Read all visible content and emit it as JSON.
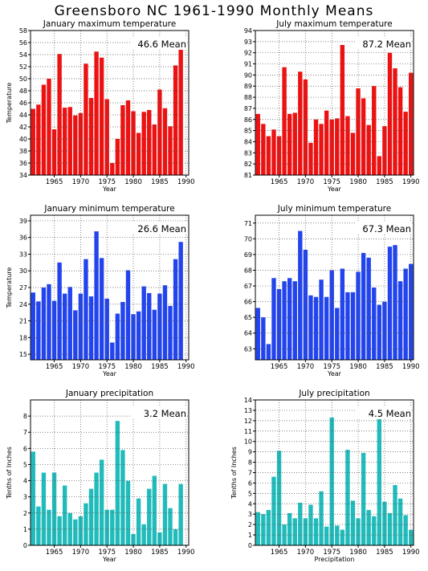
{
  "page": {
    "title": "Greensboro NC  1961-1990 Monthly Means"
  },
  "chart_data": [
    {
      "type": "bar",
      "title": "January maximum temperature",
      "xlabel": "Year",
      "ylabel": "Temperature",
      "mean_label": "46.6 Mean",
      "color": "#ee1111",
      "x": [
        1961,
        1962,
        1963,
        1964,
        1965,
        1966,
        1967,
        1968,
        1969,
        1970,
        1971,
        1972,
        1973,
        1974,
        1975,
        1976,
        1977,
        1978,
        1979,
        1980,
        1981,
        1982,
        1983,
        1984,
        1985,
        1986,
        1987,
        1988,
        1989,
        1990
      ],
      "values": [
        45.0,
        45.7,
        49.0,
        50.0,
        41.6,
        54.1,
        45.2,
        45.3,
        43.9,
        44.3,
        52.5,
        46.8,
        54.5,
        53.5,
        46.6,
        36.0,
        40.0,
        45.6,
        46.4,
        44.6,
        41.0,
        44.5,
        44.8,
        42.4,
        48.2,
        45.1,
        42.1,
        52.2,
        55.9,
        null
      ],
      "xlim": [
        1960.5,
        1990.5
      ],
      "ylim": [
        34,
        58
      ],
      "yticks": [
        34,
        36,
        38,
        40,
        42,
        44,
        46,
        48,
        50,
        52,
        54,
        56,
        58
      ],
      "xticks": [
        1965,
        1970,
        1975,
        1980,
        1985,
        1990
      ],
      "grid": true
    },
    {
      "type": "bar",
      "title": "July maximum temperature",
      "xlabel": "Year",
      "ylabel": "",
      "mean_label": "87.2 Mean",
      "color": "#ee1111",
      "x": [
        1961,
        1962,
        1963,
        1964,
        1965,
        1966,
        1967,
        1968,
        1969,
        1970,
        1971,
        1972,
        1973,
        1974,
        1975,
        1976,
        1977,
        1978,
        1979,
        1980,
        1981,
        1982,
        1983,
        1984,
        1985,
        1986,
        1987,
        1988,
        1989,
        1990
      ],
      "values": [
        86.5,
        85.6,
        84.5,
        85.1,
        84.5,
        90.7,
        86.5,
        86.6,
        90.3,
        89.6,
        83.9,
        86.0,
        85.6,
        86.8,
        86.0,
        86.1,
        92.7,
        86.3,
        84.8,
        88.8,
        87.9,
        85.5,
        89.0,
        82.7,
        85.4,
        92.0,
        90.6,
        88.9,
        86.7,
        90.2
      ],
      "xlim": [
        1960.5,
        1990.5
      ],
      "ylim": [
        81,
        94
      ],
      "yticks": [
        81,
        82,
        83,
        84,
        85,
        86,
        87,
        88,
        89,
        90,
        91,
        92,
        93,
        94
      ],
      "xticks": [
        1965,
        1970,
        1975,
        1980,
        1985,
        1990
      ],
      "grid": true
    },
    {
      "type": "bar",
      "title": "January minimum temperature",
      "xlabel": "Year",
      "ylabel": "Temperature",
      "mean_label": "26.6 Mean",
      "color": "#2244ee",
      "x": [
        1961,
        1962,
        1963,
        1964,
        1965,
        1966,
        1967,
        1968,
        1969,
        1970,
        1971,
        1972,
        1973,
        1974,
        1975,
        1976,
        1977,
        1978,
        1979,
        1980,
        1981,
        1982,
        1983,
        1984,
        1985,
        1986,
        1987,
        1988,
        1989,
        1990
      ],
      "values": [
        26.1,
        24.5,
        27.0,
        27.6,
        24.6,
        31.5,
        25.9,
        27.1,
        22.9,
        25.9,
        32.1,
        25.4,
        37.1,
        32.3,
        25.0,
        17.1,
        22.3,
        24.4,
        30.1,
        22.2,
        22.7,
        27.2,
        26.0,
        23.0,
        25.9,
        27.4,
        23.7,
        32.1,
        35.2,
        null
      ],
      "xlim": [
        1960.5,
        1990.5
      ],
      "ylim": [
        14,
        40
      ],
      "yticks": [
        15,
        18,
        21,
        24,
        27,
        30,
        33,
        36,
        39
      ],
      "xticks": [
        1965,
        1970,
        1975,
        1980,
        1985,
        1990
      ],
      "grid": true
    },
    {
      "type": "bar",
      "title": "July minimum temperature",
      "xlabel": "Year",
      "ylabel": "",
      "mean_label": "67.3 Mean",
      "color": "#2244ee",
      "x": [
        1961,
        1962,
        1963,
        1964,
        1965,
        1966,
        1967,
        1968,
        1969,
        1970,
        1971,
        1972,
        1973,
        1974,
        1975,
        1976,
        1977,
        1978,
        1979,
        1980,
        1981,
        1982,
        1983,
        1984,
        1985,
        1986,
        1987,
        1988,
        1989,
        1990
      ],
      "values": [
        65.6,
        65.0,
        63.3,
        67.5,
        66.8,
        67.3,
        67.5,
        67.3,
        70.5,
        69.3,
        66.4,
        66.3,
        67.4,
        66.3,
        68.0,
        65.6,
        68.1,
        66.6,
        66.6,
        67.9,
        69.1,
        68.8,
        66.9,
        65.8,
        66.0,
        69.5,
        69.6,
        67.3,
        68.1,
        68.4
      ],
      "xlim": [
        1960.5,
        1990.5
      ],
      "ylim": [
        62.3,
        71.5
      ],
      "yticks": [
        63,
        64,
        65,
        66,
        67,
        68,
        69,
        70,
        71
      ],
      "xticks": [
        1965,
        1970,
        1975,
        1980,
        1985,
        1990
      ],
      "grid": true
    },
    {
      "type": "bar",
      "title": "January precipitation",
      "xlabel": "Year",
      "ylabel": "Tenths of Inches",
      "mean_label": "3.2 Mean",
      "color": "#22bbbb",
      "x": [
        1961,
        1962,
        1963,
        1964,
        1965,
        1966,
        1967,
        1968,
        1969,
        1970,
        1971,
        1972,
        1973,
        1974,
        1975,
        1976,
        1977,
        1978,
        1979,
        1980,
        1981,
        1982,
        1983,
        1984,
        1985,
        1986,
        1987,
        1988,
        1989,
        1990
      ],
      "values": [
        5.8,
        2.4,
        4.5,
        2.2,
        4.5,
        1.8,
        3.7,
        2.0,
        1.6,
        1.8,
        2.6,
        3.5,
        4.5,
        5.3,
        2.2,
        2.2,
        7.7,
        5.9,
        4.0,
        0.7,
        2.9,
        1.3,
        3.5,
        4.3,
        0.8,
        3.8,
        2.3,
        1.0,
        3.8,
        null
      ],
      "xlim": [
        1960.5,
        1990.5
      ],
      "ylim": [
        0,
        9
      ],
      "yticks": [
        0,
        1,
        2,
        3,
        4,
        5,
        6,
        7,
        8
      ],
      "xticks": [
        1965,
        1970,
        1975,
        1980,
        1985,
        1990
      ],
      "grid": true
    },
    {
      "type": "bar",
      "title": "July precipitation",
      "xlabel": "Precipitation",
      "ylabel": "Tenths of Inches",
      "mean_label": "4.5 Mean",
      "color": "#22bbbb",
      "x": [
        1961,
        1962,
        1963,
        1964,
        1965,
        1966,
        1967,
        1968,
        1969,
        1970,
        1971,
        1972,
        1973,
        1974,
        1975,
        1976,
        1977,
        1978,
        1979,
        1980,
        1981,
        1982,
        1983,
        1984,
        1985,
        1986,
        1987,
        1988,
        1989,
        1990
      ],
      "values": [
        3.2,
        3.0,
        3.4,
        6.6,
        9.1,
        2.0,
        3.1,
        2.6,
        4.1,
        2.6,
        3.9,
        2.6,
        5.2,
        1.8,
        12.3,
        1.9,
        1.5,
        9.2,
        4.3,
        2.6,
        8.9,
        3.4,
        2.8,
        12.7,
        4.2,
        3.1,
        5.8,
        4.5,
        2.9,
        1.5
      ],
      "xlim": [
        1960.5,
        1990.5
      ],
      "ylim": [
        0,
        14
      ],
      "yticks": [
        0,
        1,
        2,
        3,
        4,
        5,
        6,
        7,
        8,
        9,
        10,
        11,
        12,
        13,
        14
      ],
      "xticks": [
        1965,
        1970,
        1975,
        1980,
        1985,
        1990
      ],
      "grid": true
    }
  ]
}
